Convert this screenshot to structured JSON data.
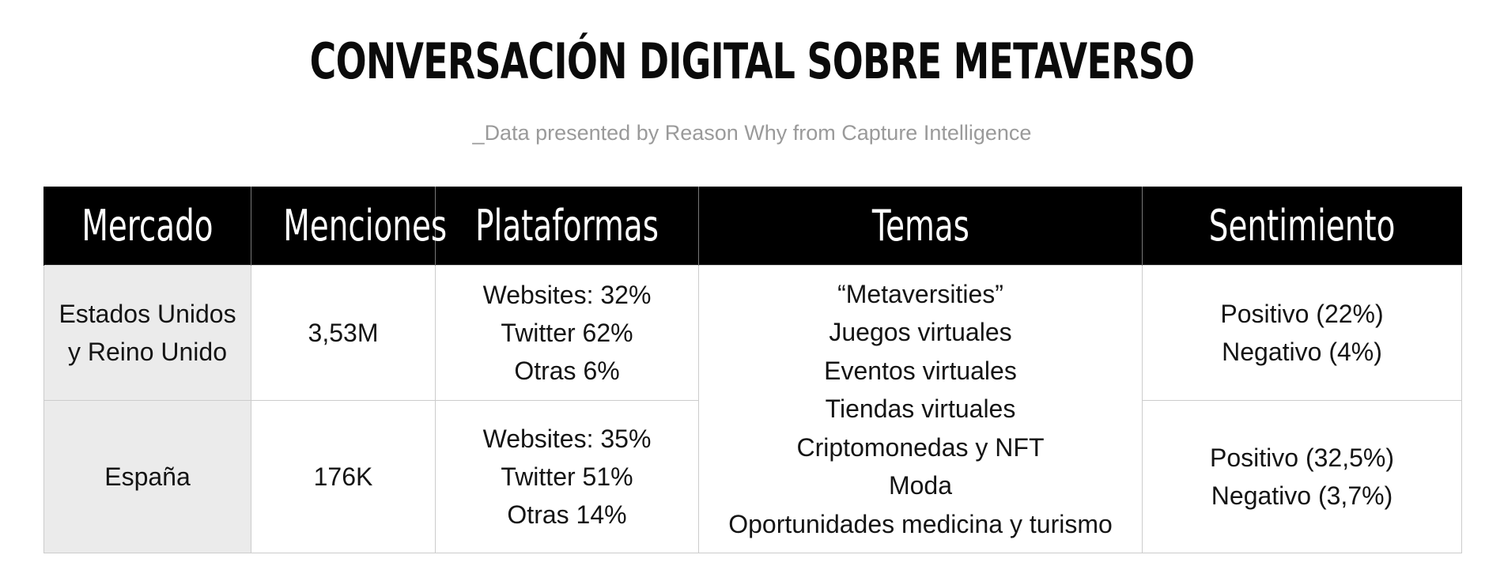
{
  "chart_data": {
    "type": "table",
    "title": "CONVERSACIÓN DIGITAL SOBRE METAVERSO",
    "subtitle": "_Data presented by Reason Why from Capture Intelligence",
    "columns": [
      "Mercado",
      "Menciones",
      "Plataformas",
      "Temas",
      "Sentimiento"
    ],
    "rows": [
      {
        "mercado": [
          "Estados Unidos",
          "y Reino Unido"
        ],
        "menciones": "3,53M",
        "plataformas": [
          "Websites: 32%",
          "Twitter 62%",
          "Otras 6%"
        ],
        "sentimiento": [
          "Positivo (22%)",
          "Negativo (4%)"
        ]
      },
      {
        "mercado": [
          "España"
        ],
        "menciones": "176K",
        "plataformas": [
          "Websites: 35%",
          "Twitter 51%",
          "Otras 14%"
        ],
        "sentimiento": [
          "Positivo (32,5%)",
          "Negativo (3,7%)"
        ]
      }
    ],
    "temas": [
      "“Metaversities”",
      "Juegos virtuales",
      "Eventos virtuales",
      "Tiendas virtuales",
      "Criptomonedas y NFT",
      "Moda",
      "Oportunidades medicina y turismo"
    ]
  }
}
